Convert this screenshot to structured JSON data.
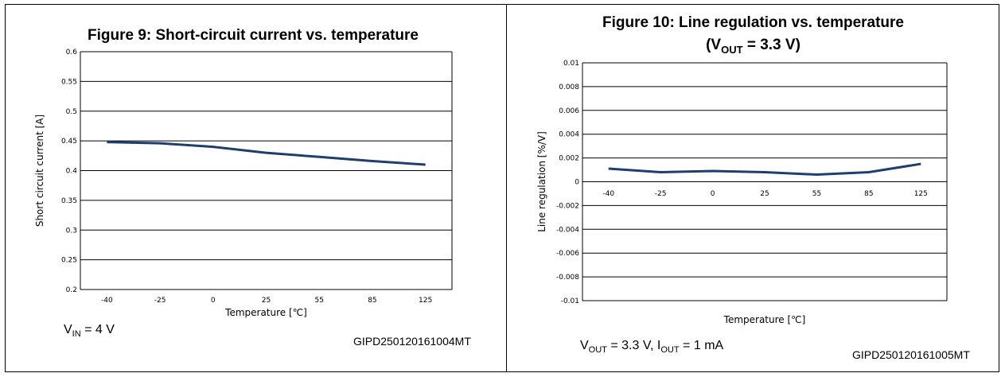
{
  "charts": [
    {
      "title": "Figure 9: Short-circuit current vs. temperature",
      "title_line2": "",
      "conditions": "V_IN = 4 V",
      "cond_parts": {
        "a": "V",
        "a_sub": "IN",
        "b": " = 4 V"
      },
      "figure_code": "GIPD250120161004MT"
    },
    {
      "title": "Figure 10: Line regulation vs. temperature",
      "title_line2": "(V_OUT = 3.3 V)",
      "title2_parts": {
        "a": "(V",
        "a_sub": "OUT",
        "b": " = 3.3 V)"
      },
      "conditions": "V_OUT = 3.3 V, I_OUT = 1 mA",
      "cond_parts": {
        "a": "V",
        "a_sub": "OUT",
        "b": " = 3.3 V, I",
        "b_sub": "OUT",
        "c": " = 1 mA"
      },
      "figure_code": "GIPD250120161005MT"
    }
  ],
  "chart_data": [
    {
      "type": "line",
      "title": "Figure 9: Short-circuit current vs. temperature",
      "xlabel": "Temperature [℃]",
      "ylabel": "Short circuit current [A]",
      "categories": [
        "-40",
        "-25",
        "0",
        "25",
        "55",
        "85",
        "125"
      ],
      "yticks": [
        "0.2",
        "0.25",
        "0.3",
        "0.35",
        "0.4",
        "0.45",
        "0.5",
        "0.55",
        "0.6"
      ],
      "ylim": [
        0.2,
        0.6
      ],
      "grid": "horizontal",
      "line_color": "#1f3d6e",
      "series": [
        {
          "values": [
            0.448,
            0.446,
            0.44,
            0.43,
            0.423,
            0.416,
            0.41
          ]
        }
      ]
    },
    {
      "type": "line",
      "title": "Figure 10: Line regulation vs. temperature (V_OUT = 3.3 V)",
      "xlabel": "Temperature [℃]",
      "ylabel": "Line regulation [%/V]",
      "categories": [
        "-40",
        "-25",
        "0",
        "25",
        "55",
        "85",
        "125"
      ],
      "yticks": [
        "-0.01",
        "-0.008",
        "-0.006",
        "-0.004",
        "-0.002",
        "0",
        "0.002",
        "0.004",
        "0.006",
        "0.008",
        "0.01"
      ],
      "ylim": [
        -0.01,
        0.01
      ],
      "grid": "horizontal",
      "line_color": "#1f3d6e",
      "series": [
        {
          "values": [
            0.0011,
            0.0008,
            0.0009,
            0.0008,
            0.0006,
            0.0008,
            0.0015
          ]
        }
      ]
    }
  ]
}
